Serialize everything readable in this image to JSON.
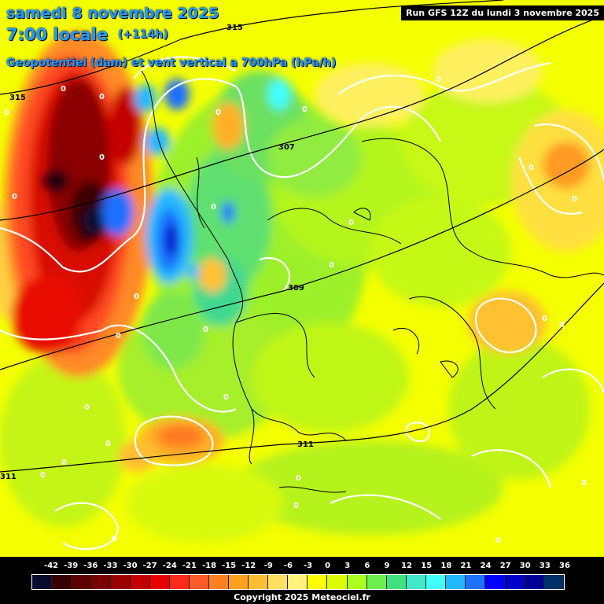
{
  "header": {
    "date": "samedi 8 novembre 2025",
    "time": "7:00 locale",
    "lead": "(+114h)",
    "variable": "Geopotentiel (dam) et vent vertical a 700hPa (hPa/h)",
    "run": "Run GFS 12Z du lundi 3 novembre 2025"
  },
  "legend": {
    "values": [
      "-42",
      "-39",
      "-36",
      "-33",
      "-30",
      "-27",
      "-24",
      "-21",
      "-18",
      "-15",
      "-12",
      "-9",
      "-6",
      "-3",
      "0",
      "3",
      "6",
      "9",
      "12",
      "15",
      "18",
      "21",
      "24",
      "27",
      "30",
      "33",
      "36"
    ],
    "colors": [
      "#0a0a30",
      "#3a0000",
      "#5c0000",
      "#7a0000",
      "#9c0000",
      "#c40000",
      "#e80000",
      "#ff2a1a",
      "#ff5a2a",
      "#ff8020",
      "#ffa020",
      "#ffbe30",
      "#ffe060",
      "#fff27a",
      "#ffff00",
      "#dcff00",
      "#a8ff20",
      "#6cf050",
      "#40e080",
      "#40e8c8",
      "#40ffff",
      "#20b8ff",
      "#1e70ff",
      "#0000ff",
      "#0000c8",
      "#000098",
      "#003068"
    ]
  },
  "map": {
    "geopotential_labels": [
      "315",
      "315",
      "307",
      "309",
      "311",
      "311"
    ],
    "zero_labels": [
      "0",
      "0",
      "0",
      "0",
      "0",
      "0",
      "0",
      "0",
      "0",
      "0",
      "0",
      "0",
      "0",
      "0",
      "0",
      "0",
      "0",
      "0",
      "0",
      "0",
      "0",
      "0",
      "0",
      "0",
      "0",
      "0",
      "0",
      "0"
    ]
  },
  "footer": {
    "copyright": "Copyright 2025 Meteociel.fr"
  },
  "colors": {
    "title": "#1e9bff",
    "background_field": "#ffff00"
  }
}
